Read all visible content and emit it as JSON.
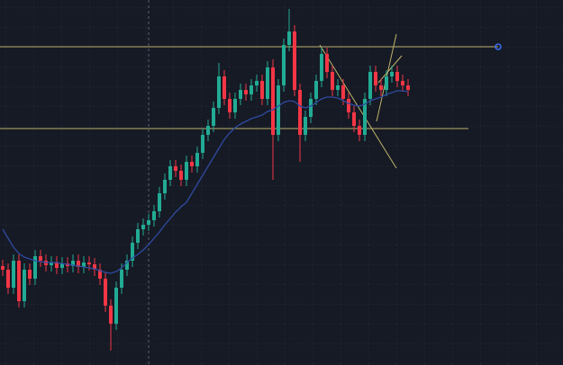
{
  "chart_data": {
    "type": "candlestick",
    "ylim": [
      0,
      406
    ],
    "up_color": "#22ab94",
    "down_color": "#f23645",
    "ma_color": "#2f4aa0",
    "level_color": "#bfb36a",
    "open": [
      110,
      106,
      86,
      116,
      71,
      106,
      96,
      121,
      116,
      111,
      114,
      108,
      113,
      110,
      116,
      109,
      114,
      112,
      106,
      96,
      66,
      46,
      86,
      106,
      116,
      136,
      151,
      156,
      161,
      171,
      191,
      206,
      221,
      216,
      206,
      226,
      221,
      236,
      256,
      266,
      286,
      321,
      296,
      281,
      296,
      306,
      301,
      311,
      316,
      296,
      331,
      256,
      311,
      356,
      371,
      306,
      256,
      276,
      296,
      316,
      346,
      326,
      306,
      311,
      296,
      281,
      266,
      256,
      296,
      326,
      311,
      306,
      321,
      326,
      316,
      311
    ],
    "high": [
      117,
      113,
      123,
      123,
      113,
      113,
      128,
      128,
      123,
      121,
      121,
      120,
      120,
      123,
      123,
      121,
      121,
      119,
      113,
      103,
      73,
      93,
      113,
      123,
      143,
      158,
      163,
      168,
      178,
      198,
      213,
      228,
      228,
      223,
      233,
      233,
      243,
      263,
      273,
      293,
      336,
      328,
      303,
      303,
      313,
      313,
      318,
      323,
      323,
      338,
      340,
      318,
      363,
      396,
      378,
      313,
      283,
      303,
      323,
      353,
      353,
      333,
      318,
      318,
      303,
      288,
      273,
      303,
      333,
      333,
      318,
      328,
      333,
      333,
      323,
      318
    ],
    "low": [
      99,
      79,
      79,
      64,
      64,
      89,
      89,
      109,
      104,
      104,
      101,
      101,
      103,
      103,
      102,
      102,
      105,
      99,
      89,
      59,
      16,
      39,
      79,
      99,
      109,
      129,
      144,
      149,
      154,
      164,
      184,
      199,
      209,
      199,
      199,
      214,
      214,
      229,
      249,
      259,
      279,
      289,
      274,
      274,
      289,
      294,
      294,
      304,
      289,
      289,
      206,
      249,
      304,
      349,
      299,
      226,
      249,
      269,
      289,
      309,
      319,
      299,
      299,
      289,
      274,
      259,
      249,
      249,
      289,
      304,
      299,
      299,
      314,
      309,
      304,
      299
    ],
    "close": [
      106,
      86,
      116,
      71,
      106,
      96,
      121,
      116,
      111,
      114,
      108,
      113,
      110,
      116,
      109,
      114,
      112,
      106,
      96,
      66,
      46,
      86,
      106,
      116,
      136,
      151,
      156,
      161,
      171,
      191,
      206,
      221,
      216,
      206,
      226,
      221,
      236,
      256,
      266,
      286,
      321,
      296,
      281,
      296,
      306,
      301,
      311,
      316,
      296,
      331,
      256,
      311,
      356,
      371,
      306,
      256,
      276,
      296,
      316,
      346,
      326,
      306,
      311,
      296,
      281,
      266,
      256,
      296,
      326,
      311,
      306,
      321,
      326,
      316,
      311,
      306
    ],
    "ma": [
      151,
      141,
      131,
      124,
      120,
      118,
      116,
      115,
      114,
      114,
      114,
      113,
      112,
      111,
      110,
      109,
      108,
      107,
      105,
      103,
      102,
      104,
      108,
      114,
      119,
      123,
      128,
      134,
      141,
      148,
      156,
      163,
      170,
      176,
      181,
      191,
      201,
      211,
      221,
      231,
      241,
      251,
      258,
      264,
      268,
      271,
      274,
      276,
      278,
      282,
      284,
      288,
      292,
      294,
      293,
      288,
      286,
      288,
      292,
      296,
      298,
      298,
      297,
      294,
      291,
      289,
      288,
      290,
      294,
      296,
      298,
      301,
      303,
      305,
      305,
      304
    ],
    "levels": [
      354,
      263
    ]
  }
}
